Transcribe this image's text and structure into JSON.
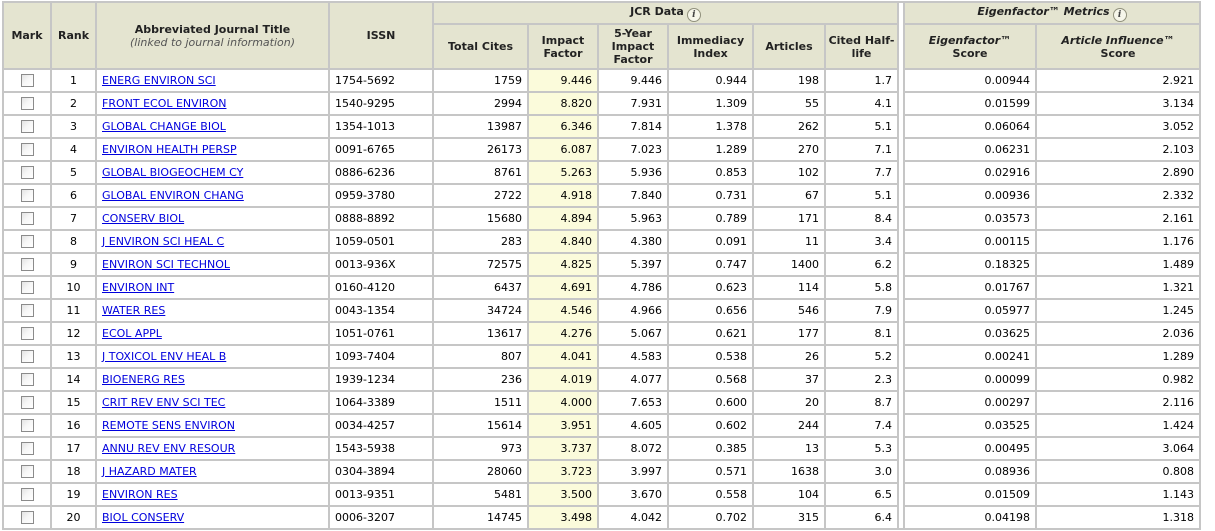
{
  "colors": {
    "header_bg": "#e4e4d0",
    "grid_line": "#c6c6c6",
    "impact_factor_highlight": "#fbfbdb",
    "link": "#0000dd",
    "row_bg": "#ffffff"
  },
  "icons": {
    "info": "i"
  },
  "header": {
    "mark": "Mark",
    "rank": "Rank",
    "title": "Abbreviated Journal Title",
    "title_sub": "(linked to journal information)",
    "issn": "ISSN",
    "jcr_group": "JCR Data",
    "eigenfactor_group": "Eigenfactor™ Metrics",
    "total_cites": "Total Cites",
    "impact_factor": "Impact Factor",
    "five_year_impact_factor": "5-Year Impact Factor",
    "immediacy_index": "Immediacy Index",
    "articles": "Articles",
    "cited_half_life": "Cited Half-life",
    "eigenfactor_score_main": "Eigenfactor™",
    "eigenfactor_score_sub": "Score",
    "article_influence_main": "Article Influence™",
    "article_influence_sub": "Score"
  },
  "rows": [
    {
      "rank": "1",
      "title": "ENERG ENVIRON SCI",
      "issn": "1754-5692",
      "total_cites": "1759",
      "impact_factor": "9.446",
      "five_year_if": "9.446",
      "immediacy": "0.944",
      "articles": "198",
      "half_life": "1.7",
      "eigenfactor": "0.00944",
      "article_influence": "2.921"
    },
    {
      "rank": "2",
      "title": "FRONT ECOL ENVIRON",
      "issn": "1540-9295",
      "total_cites": "2994",
      "impact_factor": "8.820",
      "five_year_if": "7.931",
      "immediacy": "1.309",
      "articles": "55",
      "half_life": "4.1",
      "eigenfactor": "0.01599",
      "article_influence": "3.134"
    },
    {
      "rank": "3",
      "title": "GLOBAL CHANGE BIOL",
      "issn": "1354-1013",
      "total_cites": "13987",
      "impact_factor": "6.346",
      "five_year_if": "7.814",
      "immediacy": "1.378",
      "articles": "262",
      "half_life": "5.1",
      "eigenfactor": "0.06064",
      "article_influence": "3.052"
    },
    {
      "rank": "4",
      "title": "ENVIRON HEALTH PERSP",
      "issn": "0091-6765",
      "total_cites": "26173",
      "impact_factor": "6.087",
      "five_year_if": "7.023",
      "immediacy": "1.289",
      "articles": "270",
      "half_life": "7.1",
      "eigenfactor": "0.06231",
      "article_influence": "2.103"
    },
    {
      "rank": "5",
      "title": "GLOBAL BIOGEOCHEM CY",
      "issn": "0886-6236",
      "total_cites": "8761",
      "impact_factor": "5.263",
      "five_year_if": "5.936",
      "immediacy": "0.853",
      "articles": "102",
      "half_life": "7.7",
      "eigenfactor": "0.02916",
      "article_influence": "2.890"
    },
    {
      "rank": "6",
      "title": "GLOBAL ENVIRON CHANG",
      "issn": "0959-3780",
      "total_cites": "2722",
      "impact_factor": "4.918",
      "five_year_if": "7.840",
      "immediacy": "0.731",
      "articles": "67",
      "half_life": "5.1",
      "eigenfactor": "0.00936",
      "article_influence": "2.332"
    },
    {
      "rank": "7",
      "title": "CONSERV BIOL",
      "issn": "0888-8892",
      "total_cites": "15680",
      "impact_factor": "4.894",
      "five_year_if": "5.963",
      "immediacy": "0.789",
      "articles": "171",
      "half_life": "8.4",
      "eigenfactor": "0.03573",
      "article_influence": "2.161"
    },
    {
      "rank": "8",
      "title": "J ENVIRON SCI HEAL C",
      "issn": "1059-0501",
      "total_cites": "283",
      "impact_factor": "4.840",
      "five_year_if": "4.380",
      "immediacy": "0.091",
      "articles": "11",
      "half_life": "3.4",
      "eigenfactor": "0.00115",
      "article_influence": "1.176"
    },
    {
      "rank": "9",
      "title": "ENVIRON SCI TECHNOL",
      "issn": "0013-936X",
      "total_cites": "72575",
      "impact_factor": "4.825",
      "five_year_if": "5.397",
      "immediacy": "0.747",
      "articles": "1400",
      "half_life": "6.2",
      "eigenfactor": "0.18325",
      "article_influence": "1.489"
    },
    {
      "rank": "10",
      "title": "ENVIRON INT",
      "issn": "0160-4120",
      "total_cites": "6437",
      "impact_factor": "4.691",
      "five_year_if": "4.786",
      "immediacy": "0.623",
      "articles": "114",
      "half_life": "5.8",
      "eigenfactor": "0.01767",
      "article_influence": "1.321"
    },
    {
      "rank": "11",
      "title": "WATER RES",
      "issn": "0043-1354",
      "total_cites": "34724",
      "impact_factor": "4.546",
      "five_year_if": "4.966",
      "immediacy": "0.656",
      "articles": "546",
      "half_life": "7.9",
      "eigenfactor": "0.05977",
      "article_influence": "1.245"
    },
    {
      "rank": "12",
      "title": "ECOL APPL",
      "issn": "1051-0761",
      "total_cites": "13617",
      "impact_factor": "4.276",
      "five_year_if": "5.067",
      "immediacy": "0.621",
      "articles": "177",
      "half_life": "8.1",
      "eigenfactor": "0.03625",
      "article_influence": "2.036"
    },
    {
      "rank": "13",
      "title": "J TOXICOL ENV HEAL B",
      "issn": "1093-7404",
      "total_cites": "807",
      "impact_factor": "4.041",
      "five_year_if": "4.583",
      "immediacy": "0.538",
      "articles": "26",
      "half_life": "5.2",
      "eigenfactor": "0.00241",
      "article_influence": "1.289"
    },
    {
      "rank": "14",
      "title": "BIOENERG RES",
      "issn": "1939-1234",
      "total_cites": "236",
      "impact_factor": "4.019",
      "five_year_if": "4.077",
      "immediacy": "0.568",
      "articles": "37",
      "half_life": "2.3",
      "eigenfactor": "0.00099",
      "article_influence": "0.982"
    },
    {
      "rank": "15",
      "title": "CRIT REV ENV SCI TEC",
      "issn": "1064-3389",
      "total_cites": "1511",
      "impact_factor": "4.000",
      "five_year_if": "7.653",
      "immediacy": "0.600",
      "articles": "20",
      "half_life": "8.7",
      "eigenfactor": "0.00297",
      "article_influence": "2.116"
    },
    {
      "rank": "16",
      "title": "REMOTE SENS ENVIRON",
      "issn": "0034-4257",
      "total_cites": "15614",
      "impact_factor": "3.951",
      "five_year_if": "4.605",
      "immediacy": "0.602",
      "articles": "244",
      "half_life": "7.4",
      "eigenfactor": "0.03525",
      "article_influence": "1.424"
    },
    {
      "rank": "17",
      "title": "ANNU REV ENV RESOUR",
      "issn": "1543-5938",
      "total_cites": "973",
      "impact_factor": "3.737",
      "five_year_if": "8.072",
      "immediacy": "0.385",
      "articles": "13",
      "half_life": "5.3",
      "eigenfactor": "0.00495",
      "article_influence": "3.064"
    },
    {
      "rank": "18",
      "title": "J HAZARD MATER",
      "issn": "0304-3894",
      "total_cites": "28060",
      "impact_factor": "3.723",
      "five_year_if": "3.997",
      "immediacy": "0.571",
      "articles": "1638",
      "half_life": "3.0",
      "eigenfactor": "0.08936",
      "article_influence": "0.808"
    },
    {
      "rank": "19",
      "title": "ENVIRON RES",
      "issn": "0013-9351",
      "total_cites": "5481",
      "impact_factor": "3.500",
      "five_year_if": "3.670",
      "immediacy": "0.558",
      "articles": "104",
      "half_life": "6.5",
      "eigenfactor": "0.01509",
      "article_influence": "1.143"
    },
    {
      "rank": "20",
      "title": "BIOL CONSERV",
      "issn": "0006-3207",
      "total_cites": "14745",
      "impact_factor": "3.498",
      "five_year_if": "4.042",
      "immediacy": "0.702",
      "articles": "315",
      "half_life": "6.4",
      "eigenfactor": "0.04198",
      "article_influence": "1.318"
    }
  ]
}
